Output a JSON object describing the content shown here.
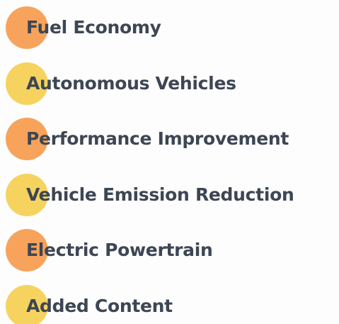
{
  "items": [
    {
      "label": "Fuel Economy",
      "color": "#f7a35c"
    },
    {
      "label": "Autonomous Vehicles",
      "color": "#f5d35e"
    },
    {
      "label": "Performance Improvement",
      "color": "#f7a35c"
    },
    {
      "label": "Vehicle Emission Reduction",
      "color": "#f5d35e"
    },
    {
      "label": "Electric Powertrain",
      "color": "#f7a35c"
    },
    {
      "label": "Added Content",
      "color": "#f5d35e"
    }
  ]
}
